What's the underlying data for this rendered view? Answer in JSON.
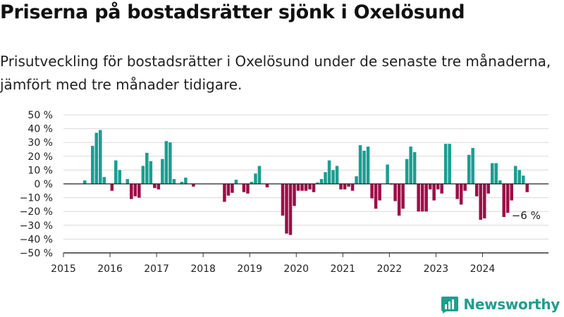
{
  "header": {
    "title": "Priserna på bostadsrätter sjönk i Oxelösund",
    "subtitle": "Prisutveckling för bostadsrätter i Oxelösund under de senaste tre månaderna, jämfört med tre månader tidigare."
  },
  "brand": {
    "name": "Newsworthy",
    "icon": "bar-chart-logo-icon"
  },
  "colors": {
    "positive": "#1a9e91",
    "negative": "#9c0e48",
    "grid": "#d9d9d9",
    "axis": "#333333"
  },
  "chart_data": {
    "type": "bar",
    "ylim": [
      -50,
      50
    ],
    "y_ticks": [
      50,
      40,
      30,
      20,
      10,
      0,
      -10,
      -20,
      -30,
      -40,
      -50
    ],
    "y_tick_labels": [
      "50 %",
      "40 %",
      "30 %",
      "20 %",
      "10 %",
      "0 %",
      "−10 %",
      "−20 %",
      "−30 %",
      "−40 %",
      "−50 %"
    ],
    "x_range": [
      "2015-01",
      "2025-06"
    ],
    "x_tick_labels": [
      "2015",
      "2016",
      "2017",
      "2018",
      "2019",
      "2020",
      "2021",
      "2022",
      "2023",
      "2024"
    ],
    "grid": true,
    "series": [
      {
        "x": [
          "2015-06",
          "2015-07",
          "2015-08",
          "2015-09",
          "2015-10",
          "2015-11",
          "2015-12",
          "2016-01",
          "2016-02",
          "2016-03",
          "2016-04",
          "2016-05",
          "2016-06",
          "2016-07",
          "2016-08",
          "2016-09",
          "2016-10",
          "2016-11",
          "2016-12",
          "2017-01",
          "2017-02",
          "2017-03",
          "2017-04",
          "2017-05",
          "2017-06",
          "2017-07",
          "2017-08",
          "2017-09",
          "2017-10",
          "2017-11",
          "2017-12",
          "2018-01",
          "2018-02",
          "2018-03",
          "2018-04",
          "2018-05",
          "2018-06",
          "2018-07",
          "2018-08",
          "2018-09",
          "2018-10",
          "2018-11",
          "2018-12",
          "2019-01",
          "2019-02",
          "2019-03",
          "2019-04",
          "2019-05",
          "2019-06",
          "2019-07",
          "2019-08",
          "2019-09",
          "2019-10",
          "2019-11",
          "2019-12",
          "2020-01",
          "2020-02",
          "2020-03",
          "2020-04",
          "2020-05",
          "2020-06",
          "2020-07",
          "2020-08",
          "2020-09",
          "2020-10",
          "2020-11",
          "2020-12",
          "2021-01",
          "2021-02",
          "2021-03",
          "2021-04",
          "2021-05",
          "2021-06",
          "2021-07",
          "2021-08",
          "2021-09",
          "2021-10",
          "2021-11",
          "2021-12",
          "2022-01",
          "2022-02",
          "2022-03",
          "2022-04",
          "2022-05",
          "2022-06",
          "2022-07",
          "2022-08",
          "2022-09",
          "2022-10",
          "2022-11",
          "2022-12",
          "2023-01",
          "2023-02",
          "2023-03",
          "2023-04",
          "2023-05",
          "2023-06",
          "2023-07",
          "2023-08",
          "2023-09",
          "2023-10",
          "2023-11",
          "2023-12",
          "2024-01",
          "2024-02",
          "2024-03",
          "2024-04",
          "2024-05",
          "2024-06",
          "2024-07",
          "2024-08",
          "2024-09",
          "2024-10",
          "2024-11",
          "2024-12"
        ],
        "values": [
          2.5,
          0,
          27.5,
          37,
          39,
          5,
          0,
          -5,
          17,
          10,
          0,
          3.5,
          -11,
          -9,
          -10,
          13,
          22.5,
          16.5,
          -3,
          -4,
          18,
          31,
          30,
          3.5,
          0,
          1.5,
          4.5,
          0,
          -2,
          0,
          0,
          0,
          0,
          0,
          0,
          0,
          -13,
          -8.5,
          -6.5,
          3,
          0,
          -6,
          -7,
          1.5,
          7.5,
          13,
          0,
          -2.5,
          0,
          0,
          0,
          -23,
          -36,
          -37,
          -16,
          -5,
          -5,
          -5,
          -4,
          -6,
          1,
          3.5,
          8.5,
          17,
          10,
          13,
          -4,
          -4,
          -2,
          -5,
          5.5,
          28,
          24,
          27,
          -10.5,
          -18,
          -12,
          0,
          14,
          -0.5,
          -12.5,
          -23,
          -18,
          18,
          27,
          23,
          -20,
          -20,
          -20,
          -4,
          -12,
          -4,
          -7,
          29,
          29,
          0,
          -11,
          -15,
          -5,
          21,
          26,
          -9,
          -26,
          -25,
          -7,
          15,
          15,
          2.5,
          -24,
          -21,
          -12,
          13,
          10,
          6,
          -6
        ]
      }
    ],
    "annotations": [
      {
        "x": "2024-12",
        "value": -6,
        "text": "−6 %"
      }
    ]
  }
}
